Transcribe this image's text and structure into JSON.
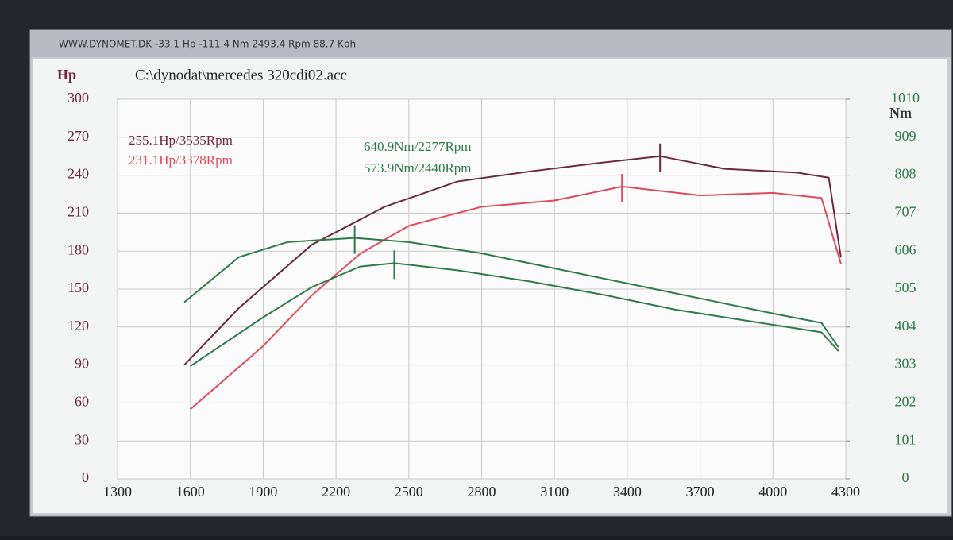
{
  "window_title": "WWW.DYNOMET.DK  -33.1 Hp -111.4 Nm 2493.4 Rpm 88.7 Kph",
  "file_path": "C:\\dynodat\\mercedes 320cdi02.acc",
  "chart_data": {
    "type": "line",
    "y_label": "Hp",
    "y2_label": "Nm",
    "xlim": [
      1300,
      4300
    ],
    "xticks": [
      1300,
      1600,
      1900,
      2200,
      2500,
      2800,
      3100,
      3400,
      3700,
      4000,
      4300
    ],
    "ylim": [
      0,
      300
    ],
    "yticks": [
      0,
      30,
      60,
      90,
      120,
      150,
      180,
      210,
      240,
      270,
      300
    ],
    "y2lim": [
      0,
      1010
    ],
    "y2ticks": [
      0,
      101,
      202,
      303,
      404,
      505,
      606,
      707,
      808,
      909,
      1010
    ],
    "grid": true,
    "annotations": [
      {
        "text": "255.1Hp/3535Rpm",
        "color": "#6a2a3c"
      },
      {
        "text": "231.1Hp/3378Rpm",
        "color": "#e04a5a"
      },
      {
        "text": "640.9Nm/2277Rpm",
        "color": "#2f7a4a"
      },
      {
        "text": "573.9Nm/2440Rpm",
        "color": "#2f7a4a"
      }
    ],
    "series": [
      {
        "color": "#6a2a3c",
        "x": [
          1575,
          1800,
          2100,
          2400,
          2700,
          3000,
          3300,
          3535,
          3800,
          4100,
          4230,
          4280
        ],
        "values": [
          90,
          135,
          185,
          215,
          235,
          243,
          250,
          255,
          245,
          242,
          238,
          175
        ]
      },
      {
        "color": "#e04a5a",
        "x": [
          1600,
          1900,
          2100,
          2300,
          2500,
          2800,
          3100,
          3378,
          3700,
          4000,
          4200,
          4280
        ],
        "values": [
          55,
          105,
          145,
          178,
          200,
          215,
          220,
          231,
          224,
          226,
          222,
          170
        ]
      },
      {
        "color": "#2f7a4a",
        "axis": "y2",
        "x": [
          1575,
          1800,
          2000,
          2277,
          2500,
          2800,
          3100,
          3400,
          3700,
          4000,
          4200,
          4270
        ],
        "values": [
          470,
          590,
          630,
          641,
          630,
          600,
          560,
          520,
          480,
          440,
          415,
          350
        ]
      },
      {
        "color": "#2f7a4a",
        "axis": "y2",
        "x": [
          1600,
          1900,
          2100,
          2300,
          2440,
          2700,
          3000,
          3300,
          3600,
          3900,
          4200,
          4270
        ],
        "values": [
          300,
          430,
          510,
          565,
          574,
          555,
          525,
          490,
          450,
          420,
          390,
          340
        ]
      }
    ]
  }
}
